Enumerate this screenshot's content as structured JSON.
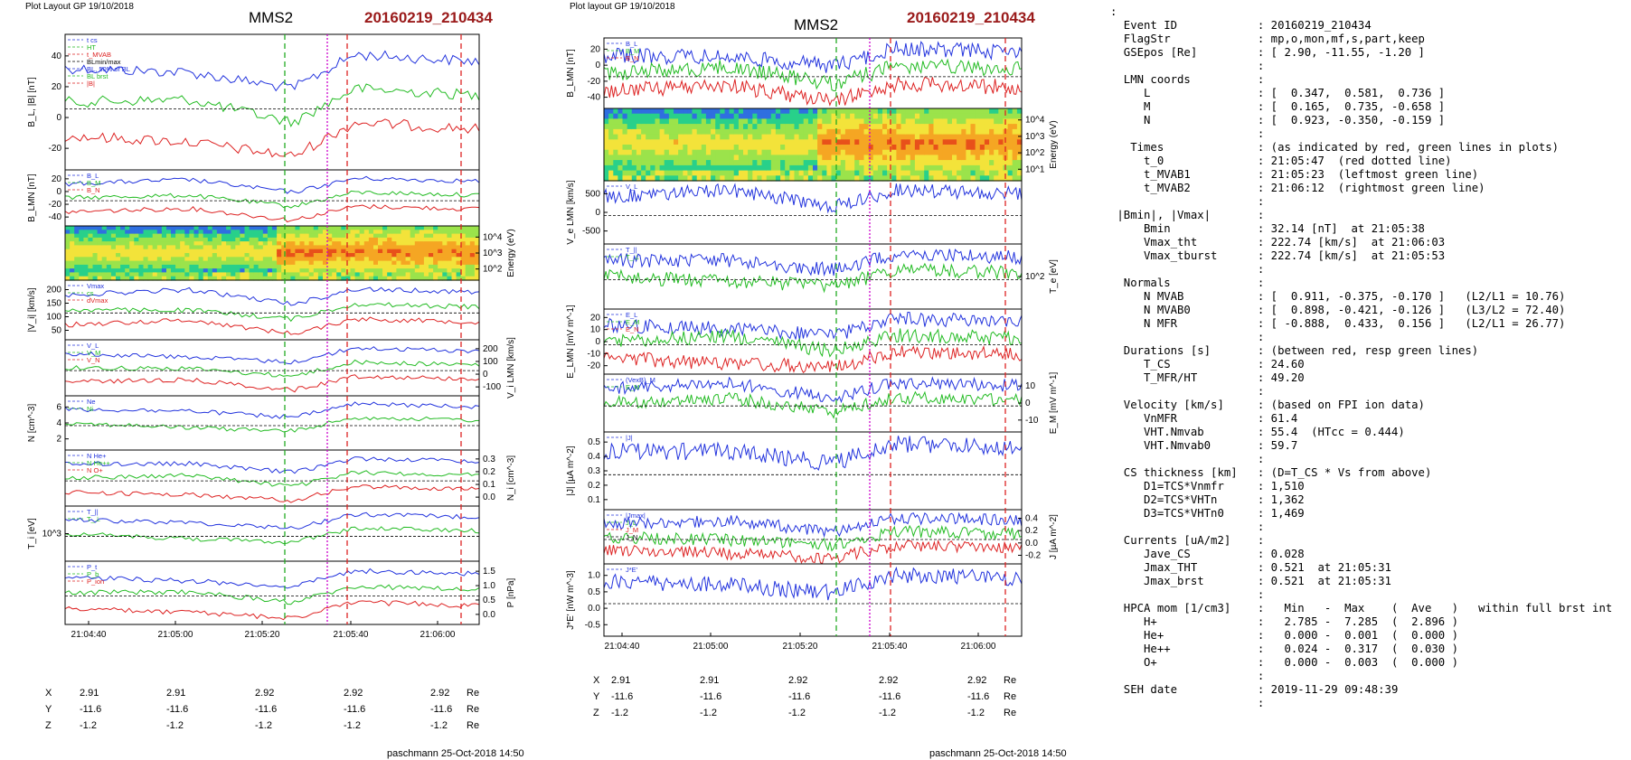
{
  "left_plot": {
    "header": "Plot Layout GP 19/10/2018",
    "spacecraft": "MMS2",
    "event": "20160219_210434",
    "author": "paschmann 25-Oct-2018 14:50",
    "time_ticks": [
      "21:04:40",
      "21:05:00",
      "21:05:20",
      "21:05:40",
      "21:06:00"
    ],
    "panels": [
      {
        "ylabel": "B_L, |B| [nT]",
        "ticks": [
          "40",
          "20",
          "0",
          "-20"
        ],
        "legend": [
          "t cs",
          "HT",
          "t_MVAB",
          "BLmin/max",
          "BL, 50% of BL",
          "BL brst",
          "|B|"
        ]
      },
      {
        "ylabel": "B_LMN [nT]",
        "ticks": [
          "20",
          "0",
          "-20",
          "-40"
        ],
        "legend": [
          "B_L",
          "B_M",
          "B_N"
        ]
      },
      {
        "ylabel": "Energy (eV)",
        "ticks_right": [
          "10^4",
          "10^3",
          "10^2"
        ]
      },
      {
        "ylabel": "|V_i| [km/s]",
        "ticks": [
          "200",
          "150",
          "100",
          "50"
        ],
        "legend": [
          "Vmax",
          "cs",
          "dVmax"
        ]
      },
      {
        "ylabel": "V_i LMN [km/s]",
        "ticks_right": [
          "200",
          "100",
          "0",
          "-100"
        ],
        "legend": [
          "V_L",
          "V_M",
          "V_N"
        ]
      },
      {
        "ylabel": "N [cm^-3]",
        "ticks": [
          "6",
          "4",
          "2"
        ],
        "legend": [
          "Ne",
          "Ni"
        ]
      },
      {
        "ylabel": "N_i [cm^-3]",
        "ticks_right": [
          "0.3",
          "0.2",
          "0.1",
          "0.0"
        ],
        "legend": [
          "N He+",
          "N He++",
          "N O+"
        ]
      },
      {
        "ylabel": "T_i [eV]",
        "ticks": [
          "10^3"
        ],
        "legend": [
          "T_||",
          "T_⊥"
        ]
      },
      {
        "ylabel": "P [nPa]",
        "ticks_right": [
          "1.5",
          "1.0",
          "0.5",
          "0.0"
        ],
        "legend": [
          "P_t",
          "P_b",
          "P_ion"
        ]
      }
    ],
    "position": {
      "labels": [
        "X",
        "Y",
        "Z"
      ],
      "unit": "Re",
      "rows": [
        [
          "2.91",
          "2.91",
          "2.92",
          "2.92",
          "2.92"
        ],
        [
          "-11.6",
          "-11.6",
          "-11.6",
          "-11.6",
          "-11.6"
        ],
        [
          "-1.2",
          "-1.2",
          "-1.2",
          "-1.2",
          "-1.2"
        ]
      ]
    }
  },
  "right_plot": {
    "header": "Plot layout GP 19/10/2018",
    "spacecraft": "MMS2",
    "event": "20160219_210434",
    "author": "paschmann 25-Oct-2018 14:50",
    "time_ticks": [
      "21:04:40",
      "21:05:00",
      "21:05:20",
      "21:05:40",
      "21:06:00"
    ],
    "panels": [
      {
        "ylabel": "B_LMN [nT]",
        "ticks": [
          "20",
          "0",
          "-20",
          "-40"
        ],
        "legend": [
          "B_L",
          "B_M",
          "B_N"
        ]
      },
      {
        "ylabel": "Energy (eV)",
        "ticks_right": [
          "10^4",
          "10^3",
          "10^2",
          "10^1"
        ]
      },
      {
        "ylabel": "V_e LMN [km/s]",
        "ticks": [
          "500",
          "0",
          "-500"
        ],
        "legend": [
          "V_L"
        ]
      },
      {
        "ylabel": "T_e [eV]",
        "ticks_right": [
          "10^2"
        ],
        "legend": [
          "T_||",
          "T_⊥"
        ]
      },
      {
        "ylabel": "E_LMN [mV m^-1]",
        "ticks": [
          "20",
          "10",
          "0",
          "-10",
          "-20"
        ],
        "legend": [
          "E_L",
          "E_M",
          "E_N"
        ]
      },
      {
        "ylabel": "E_M [mV m^-1]",
        "ticks_right": [
          "10",
          "0",
          "-10"
        ],
        "legend": [
          "(VexB)_M",
          "E_M"
        ]
      },
      {
        "ylabel": "|J| [µA m^-2]",
        "ticks": [
          "0.5",
          "0.4",
          "0.3",
          "0.2",
          "0.1"
        ],
        "legend": [
          "|J|"
        ]
      },
      {
        "ylabel": "J [µA m^-2]",
        "ticks_right": [
          "0.4",
          "0.2",
          "0.0",
          "-0.2"
        ],
        "legend": [
          "|Jmax|",
          "J_L",
          "J_M",
          "J_N"
        ]
      },
      {
        "ylabel": "J*E' [nW m^-3]",
        "ticks": [
          "1.0",
          "0.5",
          "0.0",
          "-0.5"
        ],
        "legend": [
          "J*E'"
        ]
      }
    ],
    "position": {
      "labels": [
        "X",
        "Y",
        "Z"
      ],
      "unit": "Re",
      "rows": [
        [
          "2.91",
          "2.91",
          "2.92",
          "2.92",
          "2.92"
        ],
        [
          "-11.6",
          "-11.6",
          "-11.6",
          "-11.6",
          "-11.6"
        ],
        [
          "-1.2",
          "-1.2",
          "-1.2",
          "-1.2",
          "-1.2"
        ]
      ]
    }
  },
  "info_text": [
    ":",
    "  Event ID            : 20160219_210434",
    "  FlagStr             : mp,o,mon,mf,s,part,keep",
    "  GSEpos [Re]         : [ 2.90, -11.55, -1.20 ]",
    "                      :",
    "  LMN coords          :",
    "     L                : [  0.347,  0.581,  0.736 ]",
    "     M                : [  0.165,  0.735, -0.658 ]",
    "     N                : [  0.923, -0.350, -0.159 ]",
    "                      :",
    "   Times              : (as indicated by red, green lines in plots)",
    "     t_0              : 21:05:47  (red dotted line)",
    "     t_MVAB1          : 21:05:23  (leftmost green line)",
    "     t_MVAB2          : 21:06:12  (rightmost green line)",
    "                      :",
    " |Bmin|, |Vmax|       :",
    "     Bmin             : 32.14 [nT]  at 21:05:38",
    "     Vmax_tht         : 222.74 [km/s]  at 21:06:03",
    "     Vmax_tburst      : 222.74 [km/s]  at 21:05:53",
    "                      :",
    "  Normals             :",
    "     N MVAB           : [  0.911, -0.375, -0.170 ]   (L2/L1 = 10.76)",
    "     N MVAB0          : [  0.898, -0.421, -0.126 ]   (L3/L2 = 72.40)",
    "     N MFR            : [ -0.888,  0.433,  0.156 ]   (L2/L1 = 26.77)",
    "                      :",
    "  Durations [s]       : (between red, resp green lines)",
    "     T_CS             : 24.60",
    "     T_MFR/HT         : 49.20",
    "                      :",
    "  Velocity [km/s]     : (based on FPI ion data)",
    "     VnMFR            : 61.4",
    "     VHT.Nmvab        : 55.4  (HTcc = 0.444)",
    "     VHT.Nmvab0       : 59.7",
    "                      :",
    "  CS thickness [km]   : (D=T_CS * Vs from above)",
    "     D1=TCS*Vnmfr     : 1,510",
    "     D2=TCS*VHTn      : 1,362",
    "     D3=TCS*VHTn0     : 1,469",
    "                      :",
    "  Currents [uA/m2]    :",
    "     Jave_CS          : 0.028",
    "     Jmax_THT         : 0.521  at 21:05:31",
    "     Jmax_brst        : 0.521  at 21:05:31",
    "                      :",
    "  HPCA mom [1/cm3]    :   Min   -  Max    (  Ave   )   within full brst int",
    "     H+               :   2.785 -  7.285  (  2.896 )",
    "     He+              :   0.000 -  0.001  (  0.000 )",
    "     He++             :   0.024 -  0.317  (  0.030 )",
    "     O+               :   0.000 -  0.003  (  0.000 )",
    "                      :",
    "  SEH date            : 2019-11-29 09:48:39",
    "                      :"
  ],
  "chart_data": [
    {
      "type": "line",
      "title": "MMS2 20160219_210434",
      "x_range": [
        "21:04:34",
        "21:06:04"
      ],
      "events": {
        "t_0": "21:05:47",
        "t_MVAB1": "21:05:23",
        "t_MVAB2": "21:06:12"
      },
      "series": [
        {
          "name": "BL brst",
          "x": [
            "21:04:34",
            "21:04:45",
            "21:05:00",
            "21:05:15",
            "21:05:25",
            "21:05:32",
            "21:05:40",
            "21:05:50",
            "21:06:04"
          ],
          "values": [
            -20,
            -18,
            -17,
            -14,
            -8,
            -20,
            -5,
            10,
            30
          ]
        },
        {
          "name": "|B|",
          "x": [
            "21:04:34",
            "21:05:00",
            "21:05:20",
            "21:05:30",
            "21:05:40",
            "21:06:04"
          ],
          "values": [
            45,
            44,
            44,
            38,
            44,
            45
          ]
        },
        {
          "name": "N He++",
          "x": [
            "21:04:39",
            "21:04:48",
            "21:04:58",
            "21:05:07",
            "21:05:17",
            "21:05:26",
            "21:05:35",
            "21:05:44"
          ],
          "values": [
            0.025,
            0.025,
            0.05,
            0.2,
            0.3,
            0.14,
            0.1,
            0.095
          ]
        }
      ]
    }
  ]
}
